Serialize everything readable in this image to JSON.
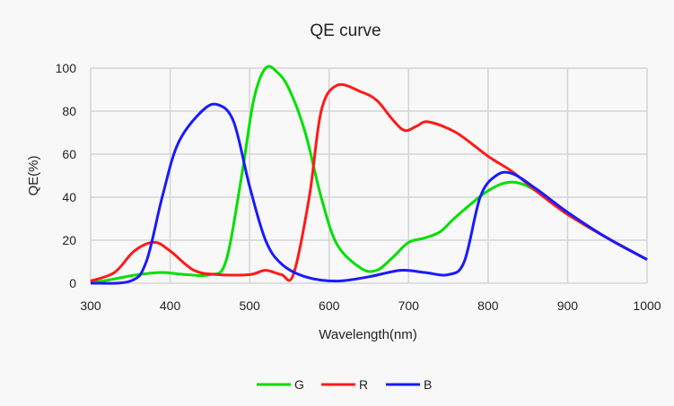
{
  "chart_data": {
    "type": "line",
    "title": "QE curve",
    "xlabel": "Wavelength(nm)",
    "ylabel": "QE(%)",
    "xlim": [
      300,
      1000
    ],
    "ylim": [
      0,
      100
    ],
    "xticks": [
      300,
      400,
      500,
      600,
      700,
      800,
      900,
      1000
    ],
    "yticks": [
      0,
      20,
      40,
      60,
      80,
      100
    ],
    "grid": true,
    "legend_position": "bottom-center",
    "series": [
      {
        "name": "G",
        "color": "#00e000",
        "points": [
          [
            300,
            0
          ],
          [
            330,
            2
          ],
          [
            360,
            4
          ],
          [
            390,
            5
          ],
          [
            420,
            4
          ],
          [
            450,
            4
          ],
          [
            470,
            10
          ],
          [
            490,
            50
          ],
          [
            505,
            85
          ],
          [
            520,
            100
          ],
          [
            535,
            98
          ],
          [
            550,
            90
          ],
          [
            570,
            70
          ],
          [
            590,
            40
          ],
          [
            610,
            18
          ],
          [
            640,
            7
          ],
          [
            660,
            6
          ],
          [
            680,
            12
          ],
          [
            700,
            19
          ],
          [
            720,
            21
          ],
          [
            740,
            24
          ],
          [
            760,
            31
          ],
          [
            800,
            43
          ],
          [
            830,
            47
          ],
          [
            860,
            43
          ],
          [
            900,
            32
          ],
          [
            950,
            21
          ],
          [
            1000,
            11
          ]
        ]
      },
      {
        "name": "R",
        "color": "#ff1a1a",
        "points": [
          [
            300,
            1
          ],
          [
            330,
            5
          ],
          [
            355,
            15
          ],
          [
            380,
            19
          ],
          [
            400,
            15
          ],
          [
            430,
            6
          ],
          [
            460,
            4
          ],
          [
            500,
            4
          ],
          [
            520,
            6
          ],
          [
            540,
            4
          ],
          [
            555,
            4
          ],
          [
            575,
            40
          ],
          [
            590,
            80
          ],
          [
            610,
            92
          ],
          [
            640,
            89
          ],
          [
            660,
            85
          ],
          [
            680,
            76
          ],
          [
            695,
            71
          ],
          [
            710,
            73
          ],
          [
            725,
            75
          ],
          [
            760,
            70
          ],
          [
            800,
            59
          ],
          [
            830,
            52
          ],
          [
            860,
            43
          ],
          [
            900,
            32
          ],
          [
            950,
            21
          ],
          [
            1000,
            11
          ]
        ]
      },
      {
        "name": "B",
        "color": "#1a1aff",
        "points": [
          [
            300,
            0
          ],
          [
            350,
            1
          ],
          [
            370,
            10
          ],
          [
            390,
            40
          ],
          [
            410,
            65
          ],
          [
            440,
            80
          ],
          [
            460,
            83
          ],
          [
            480,
            75
          ],
          [
            500,
            45
          ],
          [
            520,
            20
          ],
          [
            540,
            9
          ],
          [
            570,
            3
          ],
          [
            610,
            1
          ],
          [
            650,
            3
          ],
          [
            690,
            6
          ],
          [
            720,
            5
          ],
          [
            750,
            4
          ],
          [
            770,
            10
          ],
          [
            790,
            40
          ],
          [
            810,
            50
          ],
          [
            830,
            51
          ],
          [
            860,
            44
          ],
          [
            900,
            33
          ],
          [
            950,
            21
          ],
          [
            1000,
            11
          ]
        ]
      }
    ]
  }
}
